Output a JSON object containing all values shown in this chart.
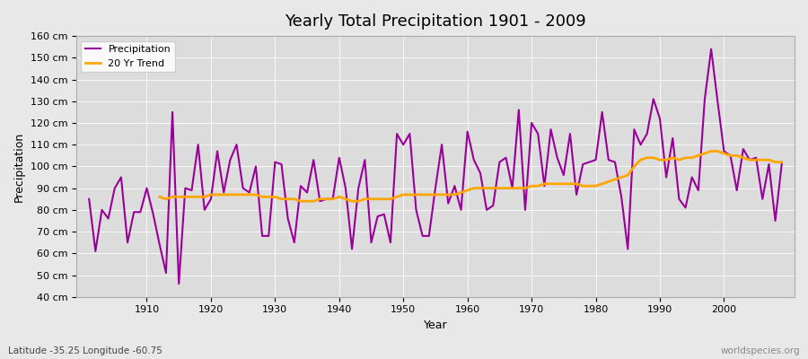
{
  "title": "Yearly Total Precipitation 1901 - 2009",
  "xlabel": "Year",
  "ylabel": "Precipitation",
  "subtitle": "Latitude -35.25 Longitude -60.75",
  "watermark": "worldspecies.org",
  "bg_color": "#e8e8e8",
  "plot_bg_color": "#dcdcdc",
  "precip_color": "#990099",
  "trend_color": "#FFA500",
  "ylim": [
    40,
    160
  ],
  "yticks": [
    40,
    50,
    60,
    70,
    80,
    90,
    100,
    110,
    120,
    130,
    140,
    150,
    160
  ],
  "years": [
    1901,
    1902,
    1903,
    1904,
    1905,
    1906,
    1907,
    1908,
    1909,
    1910,
    1911,
    1912,
    1913,
    1914,
    1915,
    1916,
    1917,
    1918,
    1919,
    1920,
    1921,
    1922,
    1923,
    1924,
    1925,
    1926,
    1927,
    1928,
    1929,
    1930,
    1931,
    1932,
    1933,
    1934,
    1935,
    1936,
    1937,
    1938,
    1939,
    1940,
    1941,
    1942,
    1943,
    1944,
    1945,
    1946,
    1947,
    1948,
    1949,
    1950,
    1951,
    1952,
    1953,
    1954,
    1955,
    1956,
    1957,
    1958,
    1959,
    1960,
    1961,
    1962,
    1963,
    1964,
    1965,
    1966,
    1967,
    1968,
    1969,
    1970,
    1971,
    1972,
    1973,
    1974,
    1975,
    1976,
    1977,
    1978,
    1979,
    1980,
    1981,
    1982,
    1983,
    1984,
    1985,
    1986,
    1987,
    1988,
    1989,
    1990,
    1991,
    1992,
    1993,
    1994,
    1995,
    1996,
    1997,
    1998,
    1999,
    2000,
    2001,
    2002,
    2003,
    2004,
    2005,
    2006,
    2007,
    2008,
    2009
  ],
  "precip": [
    85,
    61,
    80,
    76,
    90,
    95,
    65,
    79,
    79,
    90,
    78,
    64,
    51,
    125,
    46,
    90,
    89,
    110,
    80,
    85,
    107,
    88,
    103,
    110,
    90,
    88,
    100,
    68,
    68,
    102,
    101,
    76,
    65,
    91,
    88,
    103,
    84,
    85,
    85,
    104,
    90,
    62,
    90,
    103,
    65,
    77,
    78,
    65,
    115,
    110,
    115,
    80,
    68,
    68,
    90,
    110,
    83,
    91,
    80,
    116,
    103,
    97,
    80,
    82,
    102,
    104,
    90,
    126,
    80,
    120,
    115,
    91,
    117,
    104,
    96,
    115,
    87,
    101,
    102,
    103,
    125,
    103,
    102,
    86,
    62,
    117,
    110,
    115,
    131,
    122,
    95,
    113,
    85,
    81,
    95,
    89,
    131,
    154,
    130,
    107,
    105,
    89,
    108,
    103,
    104,
    85,
    101,
    75,
    101
  ],
  "trend_years": [
    1912,
    1913,
    1914,
    1915,
    1916,
    1917,
    1918,
    1919,
    1920,
    1921,
    1922,
    1923,
    1924,
    1925,
    1926,
    1927,
    1928,
    1929,
    1930,
    1931,
    1932,
    1933,
    1934,
    1935,
    1936,
    1937,
    1938,
    1939,
    1940,
    1941,
    1942,
    1943,
    1944,
    1945,
    1946,
    1947,
    1948,
    1949,
    1950,
    1951,
    1952,
    1953,
    1954,
    1955,
    1956,
    1957,
    1958,
    1959,
    1960,
    1961,
    1962,
    1963,
    1964,
    1965,
    1966,
    1967,
    1968,
    1969,
    1970,
    1971,
    1972,
    1973,
    1974,
    1975,
    1976,
    1977,
    1978,
    1979,
    1980,
    1981,
    1982,
    1983,
    1984,
    1985,
    1986,
    1987,
    1988,
    1989,
    1990,
    1991,
    1992,
    1993,
    1994,
    1995,
    1996,
    1997,
    1998,
    1999,
    2000,
    2001,
    2002,
    2003,
    2004,
    2005,
    2006,
    2007,
    2008,
    2009
  ],
  "trend": [
    86,
    85,
    86,
    86,
    86,
    86,
    86,
    86,
    87,
    87,
    87,
    87,
    87,
    87,
    87,
    87,
    86,
    86,
    86,
    85,
    85,
    85,
    84,
    84,
    84,
    85,
    85,
    85,
    86,
    85,
    84,
    84,
    85,
    85,
    85,
    85,
    85,
    86,
    87,
    87,
    87,
    87,
    87,
    87,
    87,
    87,
    87,
    88,
    89,
    90,
    90,
    90,
    90,
    90,
    90,
    90,
    90,
    90,
    91,
    91,
    92,
    92,
    92,
    92,
    92,
    92,
    91,
    91,
    91,
    92,
    93,
    94,
    95,
    96,
    100,
    103,
    104,
    104,
    103,
    103,
    104,
    103,
    104,
    104,
    105,
    106,
    107,
    107,
    106,
    105,
    105,
    104,
    103,
    103,
    103,
    103,
    102,
    102
  ]
}
